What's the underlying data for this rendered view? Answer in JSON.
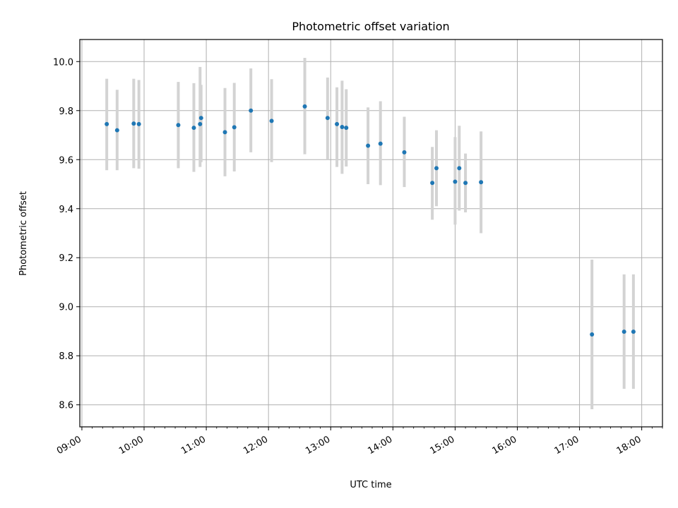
{
  "chart_data": {
    "type": "scatter",
    "title": "Photometric offset variation",
    "xlabel": "UTC time",
    "ylabel": "Photometric offset",
    "xlim": [
      "08:58",
      "18:20"
    ],
    "ylim": [
      8.51,
      10.09
    ],
    "xticks": [
      "09:00",
      "10:00",
      "11:00",
      "12:00",
      "13:00",
      "14:00",
      "15:00",
      "16:00",
      "17:00",
      "18:00"
    ],
    "yticks": [
      "8.6",
      "8.8",
      "9.0",
      "9.2",
      "9.4",
      "9.6",
      "9.8",
      "10.0"
    ],
    "grid": true,
    "point_color": "#1f77b4",
    "errorbar_color": "#d3d3d3",
    "series": [
      {
        "points": [
          {
            "t": "09:24",
            "y": 9.745,
            "lo": 9.557,
            "hi": 9.93
          },
          {
            "t": "09:34",
            "y": 9.72,
            "lo": 9.557,
            "hi": 9.885
          },
          {
            "t": "09:50",
            "y": 9.747,
            "lo": 9.565,
            "hi": 9.93
          },
          {
            "t": "09:55",
            "y": 9.745,
            "lo": 9.563,
            "hi": 9.925
          },
          {
            "t": "10:33",
            "y": 9.741,
            "lo": 9.565,
            "hi": 9.917
          },
          {
            "t": "10:48",
            "y": 9.73,
            "lo": 9.55,
            "hi": 9.912
          },
          {
            "t": "10:54",
            "y": 9.745,
            "lo": 9.57,
            "hi": 9.978
          },
          {
            "t": "10:55",
            "y": 9.77,
            "lo": 9.59,
            "hi": 9.905
          },
          {
            "t": "11:18",
            "y": 9.712,
            "lo": 9.532,
            "hi": 9.892
          },
          {
            "t": "11:27",
            "y": 9.732,
            "lo": 9.552,
            "hi": 9.913
          },
          {
            "t": "11:43",
            "y": 9.8,
            "lo": 9.63,
            "hi": 9.972
          },
          {
            "t": "12:03",
            "y": 9.758,
            "lo": 9.59,
            "hi": 9.928
          },
          {
            "t": "12:35",
            "y": 9.817,
            "lo": 9.622,
            "hi": 10.015
          },
          {
            "t": "12:57",
            "y": 9.77,
            "lo": 9.6,
            "hi": 9.935
          },
          {
            "t": "13:06",
            "y": 9.745,
            "lo": 9.57,
            "hi": 9.895
          },
          {
            "t": "13:11",
            "y": 9.733,
            "lo": 9.542,
            "hi": 9.922
          },
          {
            "t": "13:15",
            "y": 9.73,
            "lo": 9.572,
            "hi": 9.887
          },
          {
            "t": "13:36",
            "y": 9.657,
            "lo": 9.5,
            "hi": 9.813
          },
          {
            "t": "13:48",
            "y": 9.665,
            "lo": 9.496,
            "hi": 9.838
          },
          {
            "t": "14:11",
            "y": 9.63,
            "lo": 9.488,
            "hi": 9.775
          },
          {
            "t": "14:38",
            "y": 9.505,
            "lo": 9.355,
            "hi": 9.652
          },
          {
            "t": "14:42",
            "y": 9.565,
            "lo": 9.41,
            "hi": 9.72
          },
          {
            "t": "15:00",
            "y": 9.51,
            "lo": 9.335,
            "hi": 9.692
          },
          {
            "t": "15:04",
            "y": 9.565,
            "lo": 9.392,
            "hi": 9.738
          },
          {
            "t": "15:10",
            "y": 9.505,
            "lo": 9.385,
            "hi": 9.625
          },
          {
            "t": "15:25",
            "y": 9.508,
            "lo": 9.3,
            "hi": 9.715
          },
          {
            "t": "17:12",
            "y": 8.887,
            "lo": 8.582,
            "hi": 9.192
          },
          {
            "t": "17:43",
            "y": 8.898,
            "lo": 8.665,
            "hi": 9.132
          },
          {
            "t": "17:52",
            "y": 8.898,
            "lo": 8.665,
            "hi": 9.132
          }
        ]
      }
    ]
  }
}
